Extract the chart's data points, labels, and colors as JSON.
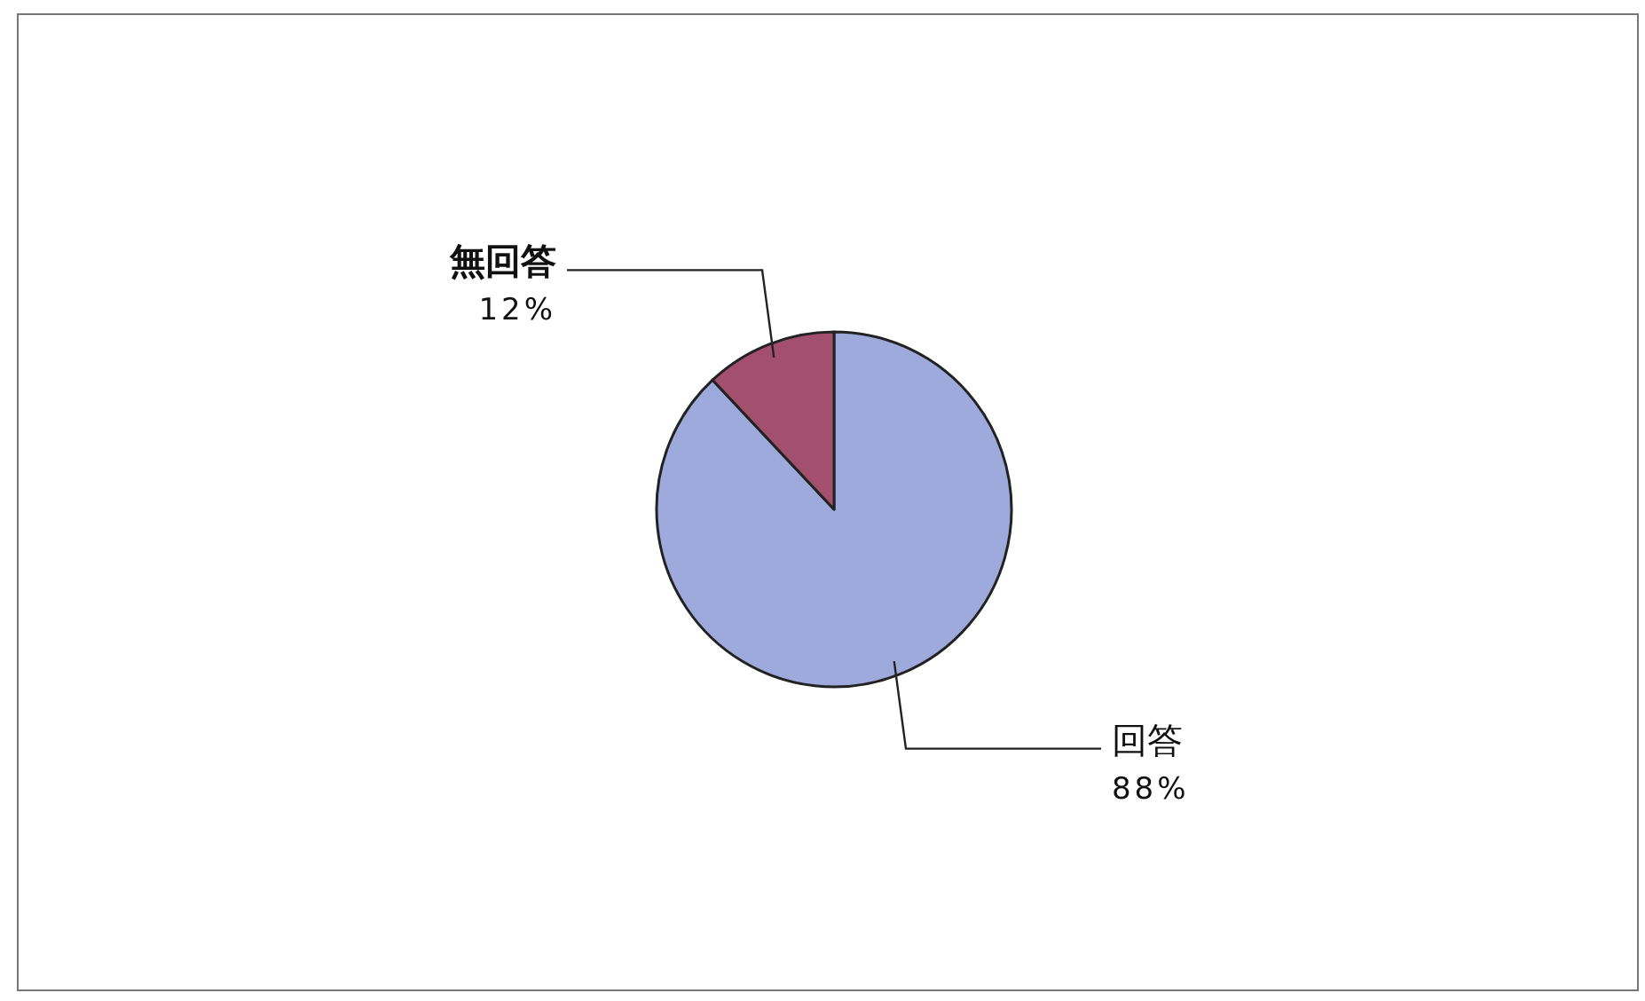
{
  "chart_data": {
    "type": "pie",
    "categories": [
      "回答",
      "無回答"
    ],
    "values": [
      88,
      12
    ],
    "colors": [
      "#9eaadc",
      "#a34f6e"
    ],
    "value_labels": [
      "88%",
      "12%"
    ]
  }
}
